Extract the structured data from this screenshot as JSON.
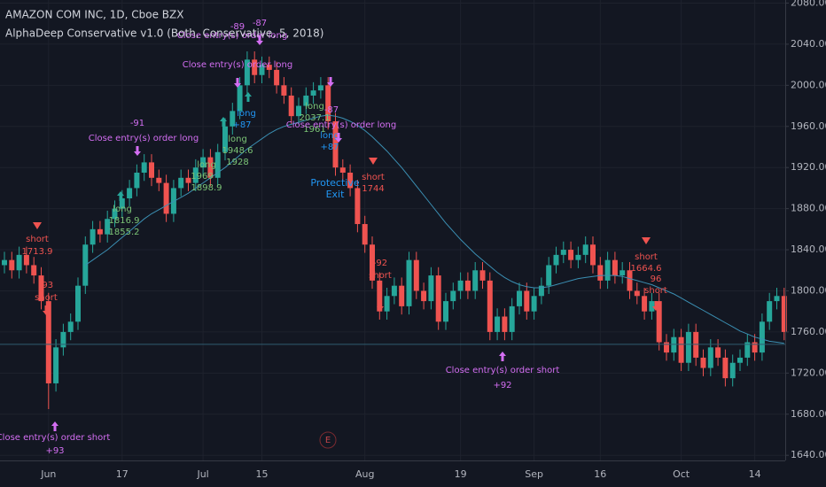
{
  "chart_data": {
    "type": "candlestick",
    "title": "AMAZON COM INC, 1D, Cboe BZX",
    "subtitle": "AlphaDeep Conservative v1.0 (Both, Conservative, 5, 2018)",
    "categories": [
      null,
      null,
      null,
      null,
      null,
      null,
      "Jun",
      null,
      null,
      null,
      null,
      null,
      null,
      null,
      null,
      null,
      "17",
      null,
      null,
      null,
      null,
      null,
      null,
      null,
      null,
      null,
      null,
      "Jul",
      null,
      null,
      null,
      null,
      null,
      null,
      null,
      "15",
      null,
      null,
      null,
      null,
      null,
      null,
      null,
      null,
      null,
      null,
      null,
      null,
      null,
      "Aug",
      null,
      null,
      null,
      null,
      null,
      null,
      null,
      null,
      null,
      null,
      null,
      null,
      "19",
      null,
      null,
      null,
      null,
      null,
      null,
      null,
      null,
      null,
      "Sep",
      null,
      null,
      null,
      null,
      null,
      null,
      null,
      null,
      "16",
      null,
      null,
      null,
      null,
      null,
      null,
      null,
      null,
      null,
      null,
      "Oct",
      null,
      null,
      null,
      null,
      null,
      null,
      null,
      null,
      null,
      "14",
      null,
      null,
      null,
      null
    ],
    "open": [
      1825,
      1830,
      1820,
      1835,
      1825,
      1815,
      1790,
      1710,
      1745,
      1760,
      1770,
      1805,
      1845,
      1860,
      1855,
      1870,
      1880,
      1890,
      1900,
      1915,
      1925,
      1910,
      1905,
      1875,
      1900,
      1910,
      1905,
      1920,
      1930,
      1910,
      1935,
      1960,
      1975,
      2000,
      2025,
      2010,
      2020,
      2015,
      2000,
      1990,
      1970,
      1980,
      1990,
      1995,
      2000,
      1965,
      1920,
      1915,
      1900,
      1865,
      1845,
      1810,
      1780,
      1795,
      1805,
      1785,
      1830,
      1800,
      1790,
      1815,
      1770,
      1790,
      1800,
      1810,
      1800,
      1820,
      1810,
      1760,
      1775,
      1760,
      1785,
      1800,
      1780,
      1795,
      1805,
      1825,
      1835,
      1840,
      1830,
      1835,
      1845,
      1825,
      1810,
      1830,
      1815,
      1820,
      1800,
      1795,
      1780,
      1790,
      1750,
      1740,
      1755,
      1730,
      1760,
      1735,
      1725,
      1745,
      1735,
      1715,
      1730,
      1735,
      1750,
      1740,
      1770,
      1790,
      1795
    ],
    "high": [
      1838,
      1838,
      1843,
      1843,
      1833,
      1823,
      1798,
      1753,
      1768,
      1778,
      1813,
      1853,
      1868,
      1868,
      1878,
      1888,
      1898,
      1908,
      1923,
      1933,
      1933,
      1918,
      1913,
      1908,
      1918,
      1918,
      1928,
      1938,
      1938,
      1943,
      1968,
      1983,
      2008,
      2033,
      2033,
      2028,
      2028,
      2023,
      2008,
      1998,
      1988,
      1998,
      2003,
      2008,
      2008,
      1973,
      1928,
      1923,
      1908,
      1873,
      1853,
      1818,
      1803,
      1813,
      1813,
      1838,
      1838,
      1808,
      1823,
      1823,
      1798,
      1808,
      1818,
      1818,
      1828,
      1828,
      1818,
      1783,
      1783,
      1793,
      1808,
      1808,
      1803,
      1813,
      1833,
      1843,
      1848,
      1848,
      1843,
      1853,
      1853,
      1833,
      1838,
      1838,
      1828,
      1828,
      1808,
      1803,
      1798,
      1798,
      1758,
      1763,
      1763,
      1768,
      1768,
      1743,
      1753,
      1753,
      1743,
      1738,
      1743,
      1758,
      1758,
      1778,
      1798,
      1803,
      1803
    ],
    "low": [
      1817,
      1812,
      1812,
      1817,
      1807,
      1782,
      1685,
      1702,
      1737,
      1752,
      1762,
      1797,
      1837,
      1847,
      1847,
      1862,
      1872,
      1882,
      1892,
      1907,
      1902,
      1897,
      1867,
      1867,
      1892,
      1897,
      1897,
      1912,
      1902,
      1902,
      1927,
      1952,
      1967,
      1992,
      2002,
      2002,
      2007,
      1992,
      1982,
      1962,
      1962,
      1972,
      1982,
      1987,
      1957,
      1912,
      1907,
      1892,
      1857,
      1837,
      1802,
      1772,
      1772,
      1787,
      1777,
      1777,
      1792,
      1782,
      1782,
      1762,
      1762,
      1782,
      1792,
      1792,
      1792,
      1802,
      1752,
      1752,
      1752,
      1752,
      1777,
      1772,
      1772,
      1787,
      1797,
      1817,
      1827,
      1822,
      1822,
      1827,
      1817,
      1802,
      1802,
      1807,
      1807,
      1792,
      1787,
      1772,
      1772,
      1742,
      1732,
      1732,
      1722,
      1722,
      1727,
      1717,
      1717,
      1727,
      1707,
      1707,
      1722,
      1727,
      1732,
      1732,
      1762,
      1782,
      1752
    ],
    "close": [
      1830,
      1820,
      1835,
      1825,
      1815,
      1790,
      1710,
      1745,
      1760,
      1770,
      1805,
      1845,
      1860,
      1855,
      1870,
      1880,
      1890,
      1900,
      1915,
      1925,
      1910,
      1905,
      1875,
      1900,
      1910,
      1905,
      1920,
      1930,
      1910,
      1935,
      1960,
      1975,
      2000,
      2025,
      2010,
      2020,
      2015,
      2000,
      1990,
      1970,
      1980,
      1990,
      1995,
      2000,
      1965,
      1920,
      1915,
      1900,
      1865,
      1845,
      1810,
      1780,
      1795,
      1805,
      1785,
      1830,
      1800,
      1790,
      1815,
      1770,
      1790,
      1800,
      1810,
      1800,
      1820,
      1810,
      1760,
      1775,
      1760,
      1785,
      1800,
      1780,
      1795,
      1805,
      1825,
      1835,
      1840,
      1830,
      1835,
      1845,
      1825,
      1810,
      1830,
      1815,
      1820,
      1800,
      1795,
      1780,
      1790,
      1750,
      1740,
      1755,
      1730,
      1760,
      1735,
      1725,
      1745,
      1735,
      1715,
      1730,
      1735,
      1750,
      1740,
      1770,
      1790,
      1795,
      1760
    ],
    "up_color": "#26a69a",
    "down_color": "#ef5350",
    "overlays": [
      {
        "color": "#3b8fb3",
        "values": [
          null,
          null,
          null,
          null,
          null,
          null,
          null,
          null,
          null,
          null,
          null,
          1825,
          1830,
          1835,
          1840,
          1846,
          1852,
          1858,
          1864,
          1870,
          1875,
          1879,
          1883,
          1887,
          1891,
          1895,
          1900,
          1905,
          1910,
          1915,
          1920,
          1926,
          1932,
          1938,
          1943,
          1948,
          1953,
          1957,
          1960,
          1962,
          1964,
          1966,
          1968,
          1970,
          1971,
          1970,
          1968,
          1965,
          1961,
          1956,
          1950,
          1943,
          1936,
          1928,
          1920,
          1911,
          1902,
          1893,
          1884,
          1875,
          1866,
          1858,
          1850,
          1843,
          1836,
          1830,
          1824,
          1818,
          1813,
          1809,
          1806,
          1804,
          1803,
          1803,
          1804,
          1806,
          1808,
          1810,
          1812,
          1813,
          1814,
          1815,
          1815,
          1815,
          1814,
          1812,
          1810,
          1808,
          1806,
          1803,
          1800,
          1797,
          1793,
          1789,
          1785,
          1781,
          1777,
          1773,
          1769,
          1765,
          1761,
          1758,
          1755,
          1753,
          1751,
          1750,
          1749
        ]
      }
    ],
    "price_line": {
      "value": 1748,
      "color": "#2f5d70"
    },
    "ylim": [
      1635,
      2083
    ],
    "yticks": [
      {
        "value": 1640,
        "label": "1640.00"
      },
      {
        "value": 1680,
        "label": "1680.00"
      },
      {
        "value": 1720,
        "label": "1720.00"
      },
      {
        "value": 1760,
        "label": "1760.00"
      },
      {
        "value": 1800,
        "label": "1800.00"
      },
      {
        "value": 1840,
        "label": "1840.00"
      },
      {
        "value": 1880,
        "label": "1880.00"
      },
      {
        "value": 1920,
        "label": "1920.00"
      },
      {
        "value": 1960,
        "label": "1960.00"
      },
      {
        "value": 2000,
        "label": "2000.00"
      },
      {
        "value": 2040,
        "label": "2040.00"
      },
      {
        "value": 2080,
        "label": "2080.00"
      }
    ],
    "grid": true,
    "annotations": [
      {
        "text": "short",
        "color": "#ef5350"
      },
      {
        "text": "1713.9",
        "color": "#ef5350"
      },
      {
        "text": "-93",
        "color": "#ef5350"
      },
      {
        "text": "short",
        "color": "#ef5350"
      },
      {
        "text": "Close entry(s) order short",
        "color": "#d36ef2"
      },
      {
        "text": "+93",
        "color": "#d36ef2"
      },
      {
        "text": "-91",
        "color": "#d36ef2"
      },
      {
        "text": "Close entry(s) order long",
        "color": "#d36ef2"
      },
      {
        "text": "long",
        "color": "#7cc576"
      },
      {
        "text": "1816.9",
        "color": "#7cc576"
      },
      {
        "text": "1855.2",
        "color": "#7cc576"
      },
      {
        "text": "long",
        "color": "#7cc576"
      },
      {
        "text": "1969",
        "color": "#7cc576"
      },
      {
        "text": "1898.9",
        "color": "#7cc576"
      },
      {
        "text": "long",
        "color": "#7cc576"
      },
      {
        "text": "1948.6",
        "color": "#7cc576"
      },
      {
        "text": "1928",
        "color": "#7cc576"
      },
      {
        "text": "-89",
        "color": "#d36ef2"
      },
      {
        "text": "Close entry(s) order long",
        "color": "#d36ef2"
      },
      {
        "text": "-87",
        "color": "#d36ef2"
      },
      {
        "text": "Close entry(s) order long",
        "color": "#d36ef2"
      },
      {
        "text": "long",
        "color": "#2196f3"
      },
      {
        "text": "+87",
        "color": "#2196f3"
      },
      {
        "text": "long",
        "color": "#7cc576"
      },
      {
        "text": "2037.1",
        "color": "#7cc576"
      },
      {
        "text": "1961",
        "color": "#7cc576"
      },
      {
        "text": "-87",
        "color": "#d36ef2"
      },
      {
        "text": "Close entry(s) order long",
        "color": "#d36ef2"
      },
      {
        "text": "long",
        "color": "#2196f3"
      },
      {
        "text": "+87",
        "color": "#2196f3"
      },
      {
        "text": "Protective",
        "color": "#2196f3"
      },
      {
        "text": "Exit",
        "color": "#2196f3"
      },
      {
        "text": "short",
        "color": "#ef5350"
      },
      {
        "text": "1744",
        "color": "#ef5350"
      },
      {
        "text": "-92",
        "color": "#ef5350"
      },
      {
        "text": "short",
        "color": "#ef5350"
      },
      {
        "text": "Close entry(s) order short",
        "color": "#d36ef2"
      },
      {
        "text": "+92",
        "color": "#d36ef2"
      },
      {
        "text": "short",
        "color": "#ef5350"
      },
      {
        "text": "1664.6",
        "color": "#ef5350"
      },
      {
        "text": "96",
        "color": "#ef5350"
      },
      {
        "text": "short",
        "color": "#ef5350"
      },
      {
        "text": "E",
        "color": "#c2444a"
      }
    ]
  }
}
